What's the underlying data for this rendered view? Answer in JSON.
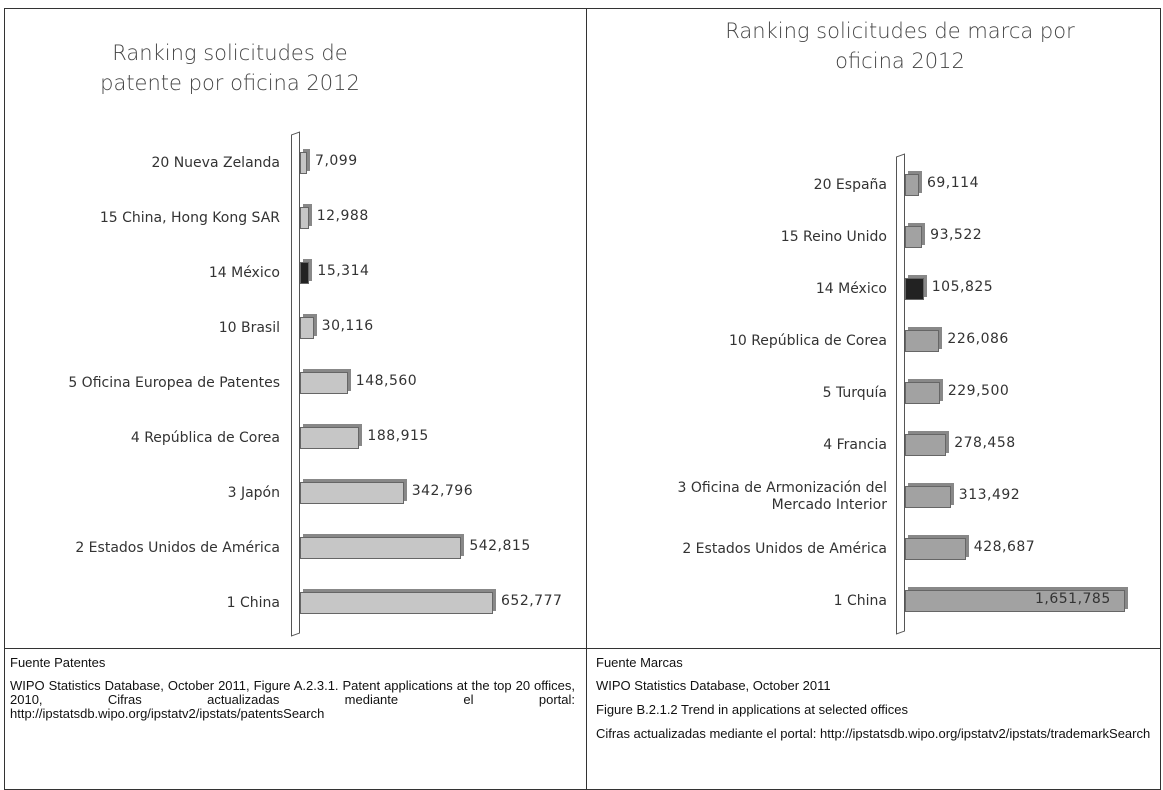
{
  "chart_data": [
    {
      "type": "bar",
      "orientation": "horizontal",
      "title": "Ranking solicitudes de patente por oficina 2012",
      "categories": [
        "20 Nueva Zelanda",
        "15 China, Hong Kong SAR",
        "14 México",
        "10 Brasil",
        "5 Oficina Europea de Patentes",
        "4 República de Corea",
        "3 Japón",
        "2 Estados Unidos de América",
        "1 China"
      ],
      "values": [
        7099,
        12988,
        15314,
        30116,
        148560,
        188915,
        342796,
        542815,
        652777
      ],
      "value_labels": [
        "7,099",
        "12,988",
        "15,314",
        "30,116",
        "148,560",
        "188,915",
        "342,796",
        "542,815",
        "652,777"
      ],
      "colors": [
        "#c6c6c6",
        "#c6c6c6",
        "#222222",
        "#c6c6c6",
        "#c6c6c6",
        "#c6c6c6",
        "#c6c6c6",
        "#c6c6c6",
        "#c6c6c6"
      ]
    },
    {
      "type": "bar",
      "orientation": "horizontal",
      "title": "Ranking solicitudes de marca por oficina 2012",
      "categories": [
        "20 España",
        "15 Reino Unido",
        "14 México",
        "10 República de Corea",
        "5 Turquía",
        "4 Francia",
        "3 Oficina de Armonización del Mercado Interior",
        "2 Estados Unidos de América",
        "1 China"
      ],
      "values": [
        69114,
        93522,
        105825,
        226086,
        229500,
        278458,
        313492,
        428687,
        1651785
      ],
      "value_labels": [
        "69,114",
        "93,522",
        "105,825",
        "226,086",
        "229,500",
        "278,458",
        "313,492",
        "428,687",
        "1,651,785"
      ],
      "colors": [
        "#a2a2a2",
        "#a2a2a2",
        "#222222",
        "#a2a2a2",
        "#a2a2a2",
        "#a2a2a2",
        "#a2a2a2",
        "#a2a2a2",
        "#a2a2a2"
      ]
    }
  ],
  "sources": [
    {
      "heading": "Fuente Patentes",
      "paragraphs": [
        "WIPO Statistics Database, October 2011, Figure A.2.3.1. Patent applications at the top 20 offices, 2010, Cifras actualizadas mediante el portal: http://ipstatsdb.wipo.org/ipstatv2/ipstats/patentsSearch"
      ]
    },
    {
      "heading": "Fuente Marcas",
      "paragraphs": [
        "WIPO Statistics Database, October 2011",
        "Figure B.2.1.2 Trend in applications at selected offices",
        "Cifras actualizadas mediante el portal: http://ipstatsdb.wipo.org/ipstatv2/ipstats/trademarkSearch"
      ]
    }
  ]
}
